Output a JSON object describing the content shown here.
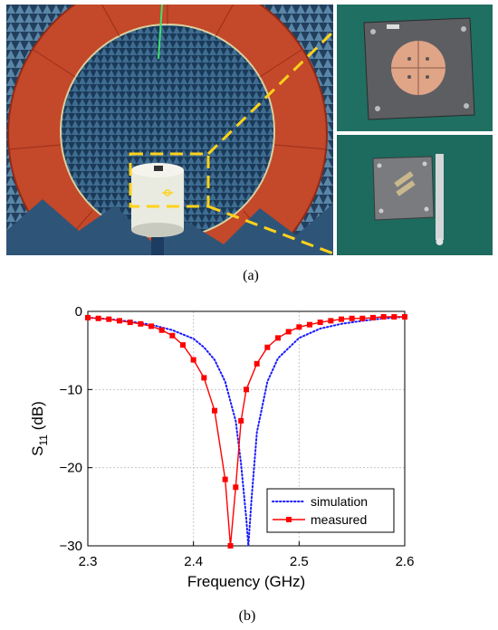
{
  "figure": {
    "caption_a": "(a)",
    "caption_b": "(b)"
  },
  "photos": {
    "left": "anechoic-chamber-measurement-setup",
    "top_right": "antenna-prototype-top-view",
    "bottom_right": "antenna-prototype-back-view-with-ruler"
  },
  "chart_data": {
    "type": "line",
    "xlabel": "Frequency (GHz)",
    "ylabel_main": "S",
    "ylabel_sub": "11",
    "ylabel_unit": " (dB)",
    "xlim": [
      2.3,
      2.6
    ],
    "ylim": [
      -30,
      0
    ],
    "xticks": [
      2.3,
      2.4,
      2.5,
      2.6
    ],
    "xtick_labels": [
      "2.3",
      "2.4",
      "2.5",
      "2.6"
    ],
    "yticks": [
      0,
      -10,
      -20,
      -30
    ],
    "ytick_labels": [
      "0",
      "−10",
      "−20",
      "−30"
    ],
    "grid": true,
    "legend_position": "bottom-right",
    "series": [
      {
        "name": "simulation",
        "color": "#1a1aff",
        "style": "dotted",
        "marker": "none",
        "x": [
          2.3,
          2.32,
          2.34,
          2.36,
          2.38,
          2.4,
          2.41,
          2.42,
          2.43,
          2.44,
          2.445,
          2.45,
          2.452,
          2.455,
          2.46,
          2.47,
          2.48,
          2.5,
          2.52,
          2.54,
          2.56,
          2.58,
          2.6
        ],
        "y": [
          -0.8,
          -1.0,
          -1.3,
          -1.7,
          -2.4,
          -3.5,
          -4.6,
          -6.2,
          -9.0,
          -14.0,
          -19.5,
          -26.5,
          -30.0,
          -24.0,
          -15.5,
          -9.0,
          -6.0,
          -3.4,
          -2.2,
          -1.6,
          -1.2,
          -0.9,
          -0.7
        ]
      },
      {
        "name": "measured",
        "color": "#ff0000",
        "style": "solid",
        "marker": "square",
        "x": [
          2.3,
          2.31,
          2.32,
          2.33,
          2.34,
          2.35,
          2.36,
          2.37,
          2.38,
          2.39,
          2.4,
          2.41,
          2.42,
          2.43,
          2.435,
          2.44,
          2.445,
          2.45,
          2.46,
          2.47,
          2.48,
          2.49,
          2.5,
          2.51,
          2.52,
          2.53,
          2.54,
          2.55,
          2.56,
          2.57,
          2.58,
          2.59,
          2.6
        ],
        "y": [
          -0.8,
          -0.9,
          -1.0,
          -1.2,
          -1.4,
          -1.6,
          -1.9,
          -2.4,
          -3.1,
          -4.3,
          -6.2,
          -8.5,
          -12.7,
          -21.5,
          -30.0,
          -22.5,
          -14.0,
          -10.0,
          -6.7,
          -4.6,
          -3.4,
          -2.6,
          -2.0,
          -1.7,
          -1.4,
          -1.2,
          -1.0,
          -0.9,
          -0.9,
          -0.8,
          -0.7,
          -0.7,
          -0.7
        ]
      }
    ]
  }
}
